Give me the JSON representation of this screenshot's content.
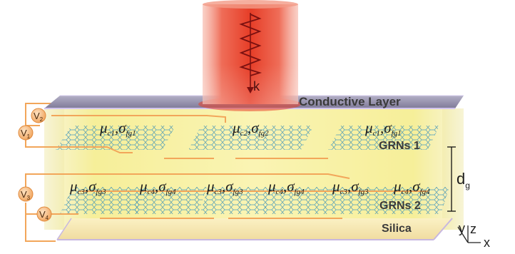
{
  "beam": {
    "k_label": "k"
  },
  "layers": {
    "conductive": "Conductive Layer",
    "grns1": "GRNs 1",
    "grns2": "GRNs 2",
    "silica": "Silica"
  },
  "gap": {
    "symbol": "d",
    "subscript": "g"
  },
  "voltages": [
    {
      "sym": "V",
      "sub": "2"
    },
    {
      "sym": "V",
      "sub": "1"
    },
    {
      "sym": "V",
      "sub": "3"
    },
    {
      "sym": "V",
      "sub": "4"
    }
  ],
  "params_row1": [
    {
      "mu": "c1",
      "sigma": "fg1"
    },
    {
      "mu": "c2",
      "sigma": "fg2"
    },
    {
      "mu": "c1",
      "sigma": "fg1"
    }
  ],
  "params_row2": [
    {
      "mu": "c3",
      "sigma": "fg3"
    },
    {
      "mu": "c4",
      "sigma": "fg4"
    },
    {
      "mu": "c3",
      "sigma": "fg3"
    },
    {
      "mu": "c4",
      "sigma": "fg4"
    },
    {
      "mu": "c3",
      "sigma": "fg3"
    },
    {
      "mu": "c4",
      "sigma": "fg4"
    }
  ],
  "axes": {
    "x": "x",
    "y": "y",
    "z": "z"
  },
  "colors": {
    "beam": "#e8402a",
    "slab": "#f3ea7a",
    "wire": "#f2a65a",
    "node_fill": "#f7c089",
    "graphene": "#3b8fb5",
    "conductive": "#8f8aa6",
    "silica": "#f5e3a8"
  }
}
